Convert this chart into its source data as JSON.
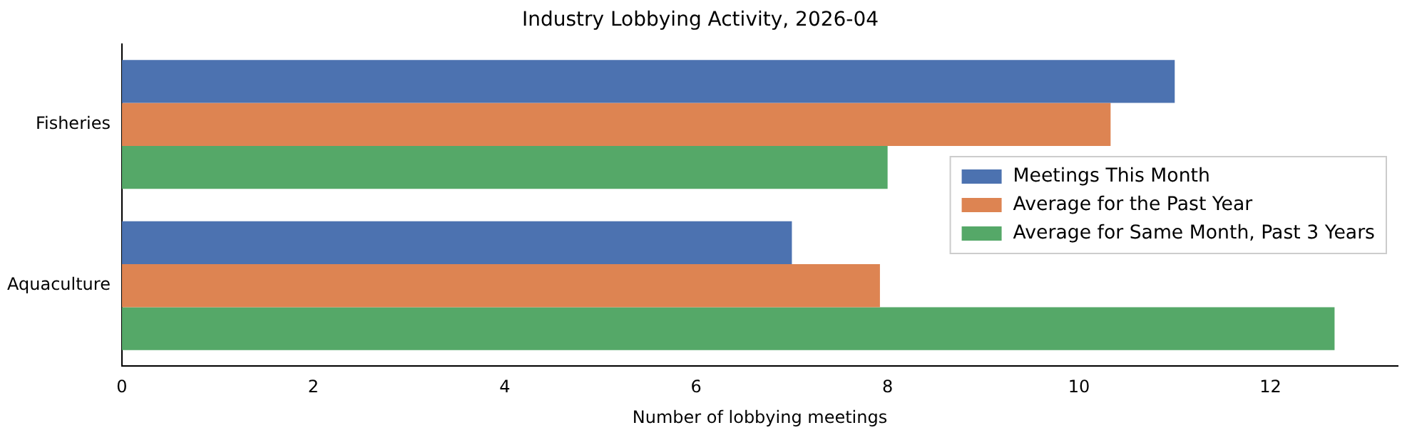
{
  "chart_data": {
    "type": "bar",
    "orientation": "horizontal",
    "title": "Industry Lobbying Activity, 2026-04",
    "xlabel": "Number of lobbying meetings",
    "categories": [
      "Fisheries",
      "Aquaculture"
    ],
    "series": [
      {
        "name": "Meetings This Month",
        "color": "#4c72b0",
        "values": [
          11,
          7
        ]
      },
      {
        "name": "Average for the Past Year",
        "color": "#dd8452",
        "values": [
          10.33,
          7.92
        ]
      },
      {
        "name": "Average for Same Month, Past 3 Years",
        "color": "#55a868",
        "values": [
          8,
          12.67
        ]
      }
    ],
    "xlim": [
      0,
      13.33
    ],
    "xticks": [
      0,
      2,
      4,
      6,
      8,
      10,
      12
    ],
    "grid": false,
    "legend": "center right"
  }
}
